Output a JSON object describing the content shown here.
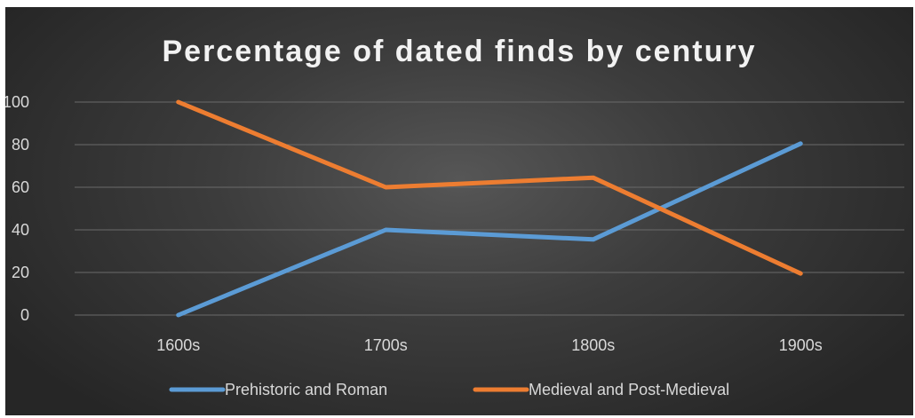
{
  "chart_data": {
    "type": "line",
    "title": "Percentage of dated finds by century",
    "categories": [
      "1600s",
      "1700s",
      "1800s",
      "1900s"
    ],
    "series": [
      {
        "name": "Prehistoric and Roman",
        "color": "#5b9bd5",
        "values": [
          0,
          40,
          35.5,
          80.5
        ]
      },
      {
        "name": "Medieval and Post-Medieval",
        "color": "#ed7d31",
        "values": [
          100,
          60,
          64.5,
          19.5
        ]
      }
    ],
    "yticks": [
      0,
      20,
      40,
      60,
      80,
      100
    ],
    "ylim": [
      0,
      100
    ],
    "grid": true,
    "legend_position": "bottom"
  }
}
